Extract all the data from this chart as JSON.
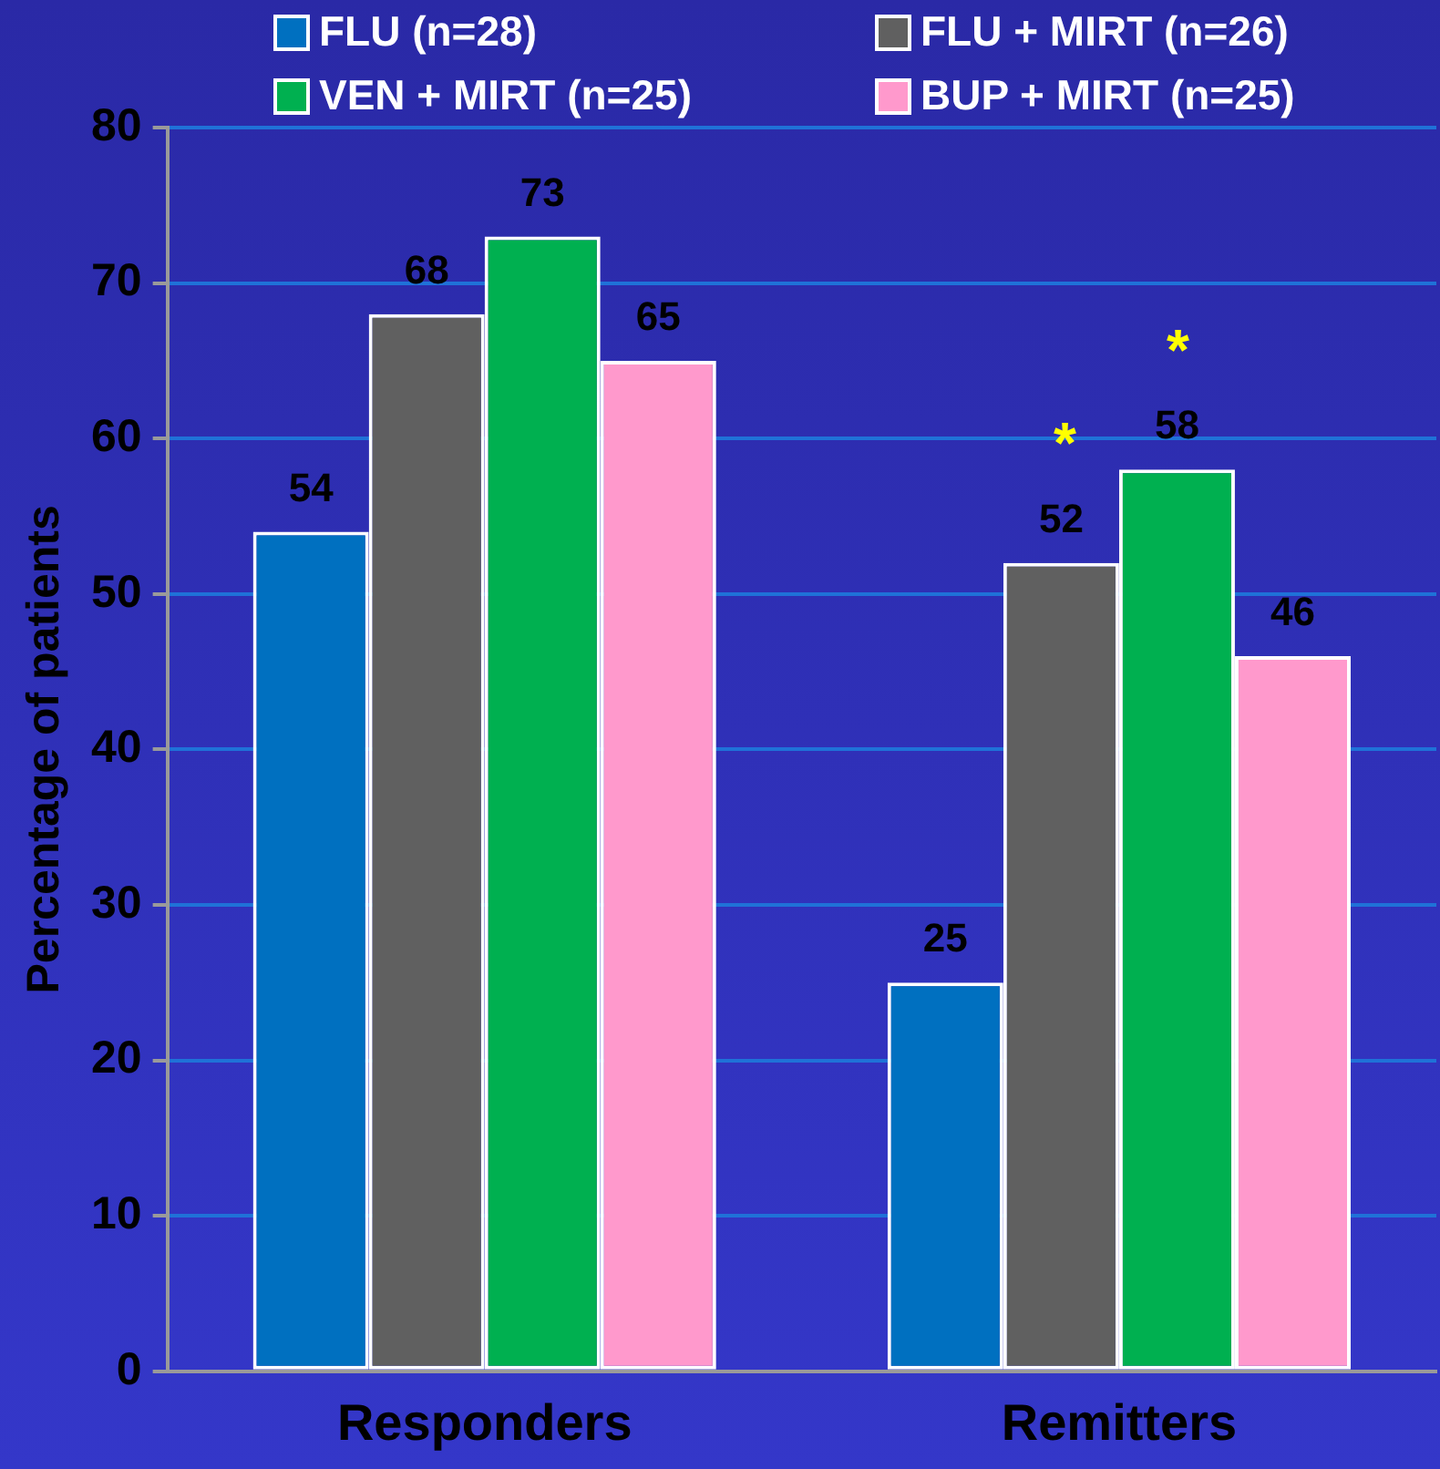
{
  "chart_data": {
    "type": "bar",
    "ylabel": "Percentage of patients",
    "categories": [
      "Responders",
      "Remitters"
    ],
    "series": [
      {
        "name": "FLU (n=28)",
        "color": "#0070c0",
        "values": [
          54,
          25
        ]
      },
      {
        "name": "FLU + MIRT (n=26)",
        "color": "#606060",
        "values": [
          68,
          52
        ]
      },
      {
        "name": "VEN + MIRT (n=25)",
        "color": "#00b050",
        "values": [
          73,
          58
        ]
      },
      {
        "name": "BUP + MIRT (n=25)",
        "color": "#ff99cc",
        "values": [
          65,
          46
        ]
      }
    ],
    "ylim": [
      0,
      80
    ],
    "yticks": [
      0,
      10,
      20,
      30,
      40,
      50,
      60,
      70,
      80
    ],
    "grid": "y",
    "legend": "top",
    "data_labels": true,
    "annotations": [
      "*",
      "*"
    ]
  }
}
